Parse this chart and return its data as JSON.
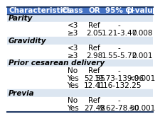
{
  "title_row": [
    "Characteristics",
    "Class",
    "OR",
    "95% CI",
    "p-value"
  ],
  "rows": [
    {
      "label": "Parity",
      "is_header": true,
      "class": "",
      "or": "",
      "ci": "",
      "pvalue": ""
    },
    {
      "label": "",
      "is_header": false,
      "class": "<3",
      "or": "Ref",
      "ci": "-",
      "pvalue": ""
    },
    {
      "label": "",
      "is_header": false,
      "class": "≥3",
      "or": "2.05",
      "ci": "1.21-3.47",
      "pvalue": "0.008"
    },
    {
      "label": "Gravidity",
      "is_header": true,
      "class": "",
      "or": "",
      "ci": "",
      "pvalue": ""
    },
    {
      "label": "",
      "is_header": false,
      "class": "<3",
      "or": "Ref",
      "ci": "-",
      "pvalue": ""
    },
    {
      "label": "",
      "is_header": false,
      "class": "≥3",
      "or": "2.98",
      "ci": "1.55-5.72",
      "pvalue": "0.001"
    },
    {
      "label": "Prior cesarean delivery",
      "is_header": true,
      "class": "",
      "or": "",
      "ci": "",
      "pvalue": ""
    },
    {
      "label": "",
      "is_header": false,
      "class": "No",
      "or": "Ref",
      "ci": "-",
      "pvalue": ""
    },
    {
      "label": "",
      "is_header": false,
      "class": "Yes",
      "or": "52.55",
      "ci": "19.73-139.96",
      "pvalue": "<0.001"
    },
    {
      "label": "",
      "is_header": false,
      "class": "Yes",
      "or": "12.41",
      "ci": "1.16-132.25",
      "pvalue": ""
    },
    {
      "label": "Previa",
      "is_header": true,
      "class": "",
      "or": "",
      "ci": "",
      "pvalue": ""
    },
    {
      "label": "",
      "is_header": false,
      "class": "No",
      "or": "Ref",
      "ci": "-",
      "pvalue": ""
    },
    {
      "label": "",
      "is_header": false,
      "class": "Yes",
      "or": "27.48",
      "ci": "9.62-78.50",
      "pvalue": "<0.001"
    }
  ],
  "header_bg": "#4472c4",
  "header_fg": "#ffffff",
  "section_bg": "#dce6f1",
  "row_bg": "#ffffff",
  "border_color": "#1f3864",
  "font_size": 7.5
}
